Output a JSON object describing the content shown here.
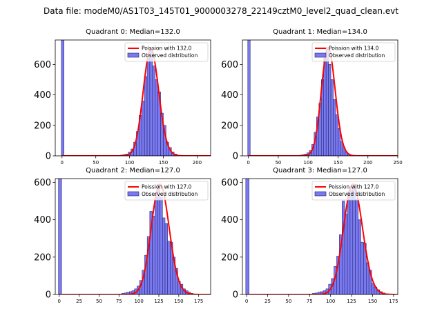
{
  "suptitle": "Data file: modeM0/AS1T03_145T01_9000003278_22149cztM0_level2_quad_clean.evt",
  "colors": {
    "bar": "#7a7af0",
    "bar_edge": "#1a1a60",
    "fit": "#ff0000"
  },
  "chart_data": [
    {
      "type": "bar",
      "title": "Quadrant 0: Median=132.0",
      "legend": {
        "line": "Poission with 132.0",
        "bars": "Observed distribution",
        "placement": "upper right"
      },
      "mean": 132.0,
      "xlim": [
        -10,
        220
      ],
      "ylim": [
        0,
        760
      ],
      "xticks": [
        0,
        50,
        100,
        150,
        200
      ],
      "yticks": [
        0,
        200,
        400,
        600
      ],
      "zero_bar": {
        "x": 1,
        "value": 760
      },
      "bin_width": 4,
      "bins": [
        {
          "x": 88,
          "y": 5
        },
        {
          "x": 92,
          "y": 8
        },
        {
          "x": 96,
          "y": 12
        },
        {
          "x": 100,
          "y": 25
        },
        {
          "x": 104,
          "y": 45
        },
        {
          "x": 108,
          "y": 90
        },
        {
          "x": 112,
          "y": 160
        },
        {
          "x": 116,
          "y": 265
        },
        {
          "x": 120,
          "y": 360
        },
        {
          "x": 124,
          "y": 520
        },
        {
          "x": 128,
          "y": 640
        },
        {
          "x": 132,
          "y": 700
        },
        {
          "x": 136,
          "y": 590
        },
        {
          "x": 140,
          "y": 500
        },
        {
          "x": 144,
          "y": 420
        },
        {
          "x": 148,
          "y": 280
        },
        {
          "x": 152,
          "y": 200
        },
        {
          "x": 156,
          "y": 90
        },
        {
          "x": 160,
          "y": 55
        },
        {
          "x": 164,
          "y": 25
        },
        {
          "x": 168,
          "y": 12
        },
        {
          "x": 172,
          "y": 5
        }
      ]
    },
    {
      "type": "bar",
      "title": "Quadrant 1: Median=134.0",
      "legend": {
        "line": "Poission with 134.0",
        "bars": "Observed distribution",
        "placement": "upper right"
      },
      "mean": 134.0,
      "xlim": [
        -10,
        250
      ],
      "ylim": [
        0,
        760
      ],
      "xticks": [
        0,
        50,
        100,
        150,
        200,
        250
      ],
      "yticks": [
        0,
        200,
        400,
        600
      ],
      "zero_bar": {
        "x": 1,
        "value": 760
      },
      "bin_width": 4,
      "bins": [
        {
          "x": 88,
          "y": 5
        },
        {
          "x": 92,
          "y": 8
        },
        {
          "x": 96,
          "y": 12
        },
        {
          "x": 100,
          "y": 20
        },
        {
          "x": 104,
          "y": 35
        },
        {
          "x": 108,
          "y": 75
        },
        {
          "x": 112,
          "y": 155
        },
        {
          "x": 116,
          "y": 255
        },
        {
          "x": 120,
          "y": 345
        },
        {
          "x": 124,
          "y": 500
        },
        {
          "x": 128,
          "y": 640
        },
        {
          "x": 132,
          "y": 710
        },
        {
          "x": 136,
          "y": 600
        },
        {
          "x": 140,
          "y": 500
        },
        {
          "x": 144,
          "y": 370
        },
        {
          "x": 148,
          "y": 270
        },
        {
          "x": 152,
          "y": 180
        },
        {
          "x": 156,
          "y": 95
        },
        {
          "x": 160,
          "y": 55
        },
        {
          "x": 164,
          "y": 25
        },
        {
          "x": 168,
          "y": 12
        },
        {
          "x": 172,
          "y": 5
        }
      ]
    },
    {
      "type": "bar",
      "title": "Quadrant 2: Median=127.0",
      "legend": {
        "line": "Poission with 127.0",
        "bars": "Observed distribution",
        "placement": "upper right"
      },
      "mean": 127.0,
      "xlim": [
        -5,
        190
      ],
      "ylim": [
        0,
        620
      ],
      "xticks": [
        0,
        25,
        50,
        75,
        100,
        125,
        150,
        175
      ],
      "yticks": [
        0,
        200,
        400,
        600
      ],
      "zero_bar": {
        "x": 1,
        "value": 620
      },
      "bin_width": 3.2,
      "bins": [
        {
          "x": 80,
          "y": 6
        },
        {
          "x": 83.2,
          "y": 8
        },
        {
          "x": 86.4,
          "y": 12
        },
        {
          "x": 89.6,
          "y": 15
        },
        {
          "x": 92.8,
          "y": 20
        },
        {
          "x": 96,
          "y": 30
        },
        {
          "x": 99.2,
          "y": 45
        },
        {
          "x": 102.4,
          "y": 75
        },
        {
          "x": 105.6,
          "y": 130
        },
        {
          "x": 108.8,
          "y": 210
        },
        {
          "x": 112,
          "y": 310
        },
        {
          "x": 115.2,
          "y": 445
        },
        {
          "x": 118.4,
          "y": 420
        },
        {
          "x": 121.6,
          "y": 520
        },
        {
          "x": 124.8,
          "y": 590
        },
        {
          "x": 128,
          "y": 520
        },
        {
          "x": 131.2,
          "y": 410
        },
        {
          "x": 134.4,
          "y": 380
        },
        {
          "x": 137.6,
          "y": 285
        },
        {
          "x": 140.8,
          "y": 280
        },
        {
          "x": 144,
          "y": 200
        },
        {
          "x": 147.2,
          "y": 140
        },
        {
          "x": 150.4,
          "y": 70
        },
        {
          "x": 153.6,
          "y": 55
        },
        {
          "x": 156.8,
          "y": 30
        },
        {
          "x": 160,
          "y": 20
        },
        {
          "x": 163.2,
          "y": 12
        },
        {
          "x": 166.4,
          "y": 6
        }
      ]
    },
    {
      "type": "bar",
      "title": "Quadrant 3: Median=127.0",
      "legend": {
        "line": "Poission with 127.0",
        "bars": "Observed distribution",
        "placement": "upper right"
      },
      "mean": 127.0,
      "xlim": [
        -5,
        180
      ],
      "ylim": [
        0,
        620
      ],
      "xticks": [
        0,
        25,
        50,
        75,
        100,
        125,
        150,
        175
      ],
      "yticks": [
        0,
        200,
        400,
        600
      ],
      "zero_bar": {
        "x": 1,
        "value": 620
      },
      "bin_width": 3.2,
      "bins": [
        {
          "x": 80,
          "y": 6
        },
        {
          "x": 83.2,
          "y": 8
        },
        {
          "x": 86.4,
          "y": 12
        },
        {
          "x": 89.6,
          "y": 15
        },
        {
          "x": 92.8,
          "y": 20
        },
        {
          "x": 96,
          "y": 30
        },
        {
          "x": 99.2,
          "y": 55
        },
        {
          "x": 102.4,
          "y": 85
        },
        {
          "x": 105.6,
          "y": 150
        },
        {
          "x": 108.8,
          "y": 205
        },
        {
          "x": 112,
          "y": 320
        },
        {
          "x": 115.2,
          "y": 500
        },
        {
          "x": 118.4,
          "y": 430
        },
        {
          "x": 121.6,
          "y": 550
        },
        {
          "x": 124.8,
          "y": 560
        },
        {
          "x": 128,
          "y": 590
        },
        {
          "x": 131.2,
          "y": 510
        },
        {
          "x": 134.4,
          "y": 400
        },
        {
          "x": 137.6,
          "y": 280
        },
        {
          "x": 140.8,
          "y": 275
        },
        {
          "x": 144,
          "y": 170
        },
        {
          "x": 147.2,
          "y": 130
        },
        {
          "x": 150.4,
          "y": 60
        },
        {
          "x": 153.6,
          "y": 40
        },
        {
          "x": 156.8,
          "y": 25
        },
        {
          "x": 160,
          "y": 15
        },
        {
          "x": 163.2,
          "y": 8
        },
        {
          "x": 166.4,
          "y": 4
        }
      ]
    }
  ]
}
